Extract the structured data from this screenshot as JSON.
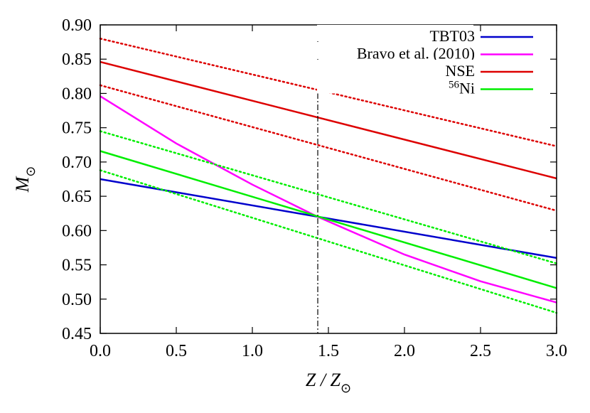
{
  "chart_data": {
    "type": "line",
    "title": "",
    "xlabel": {
      "main": "Z / Z",
      "sub": "⊙"
    },
    "ylabel": {
      "main": "M",
      "sub": "⊙"
    },
    "xlim": [
      0.0,
      3.0
    ],
    "ylim": [
      0.45,
      0.9
    ],
    "xticks": [
      "0.0",
      "0.5",
      "1.0",
      "1.5",
      "2.0",
      "2.5",
      "3.0"
    ],
    "yticks": [
      "0.45",
      "0.50",
      "0.55",
      "0.60",
      "0.65",
      "0.70",
      "0.75",
      "0.80",
      "0.85",
      "0.90"
    ],
    "grid": false,
    "legend_position": "top-right",
    "vline": {
      "x": 1.43,
      "style": "dash-dot",
      "color": "#000000"
    },
    "series": [
      {
        "name": "TBT03",
        "color": "#0000cc",
        "style": "solid",
        "x": [
          0.0,
          3.0
        ],
        "y": [
          0.675,
          0.56
        ]
      },
      {
        "name": "Bravo et al. (2010)",
        "color": "#ff00ff",
        "style": "solid",
        "x": [
          0.0,
          0.5,
          1.0,
          1.43,
          2.0,
          2.5,
          3.0
        ],
        "y": [
          0.796,
          0.727,
          0.667,
          0.62,
          0.565,
          0.526,
          0.495
        ]
      },
      {
        "name": "NSE",
        "color": "#dd0000",
        "style": "solid",
        "x": [
          0.0,
          3.0
        ],
        "y": [
          0.846,
          0.676
        ]
      },
      {
        "name": "",
        "color": "#dd0000",
        "style": "dotted",
        "x": [
          0.0,
          3.0
        ],
        "y": [
          0.88,
          0.723
        ]
      },
      {
        "name": "",
        "color": "#dd0000",
        "style": "dotted",
        "x": [
          0.0,
          3.0
        ],
        "y": [
          0.812,
          0.629
        ]
      },
      {
        "name": "Ni",
        "name_sup": "56",
        "color": "#00ee00",
        "style": "solid",
        "x": [
          0.0,
          3.0
        ],
        "y": [
          0.716,
          0.516
        ]
      },
      {
        "name": "",
        "color": "#00ee00",
        "style": "dotted",
        "x": [
          0.0,
          3.0
        ],
        "y": [
          0.745,
          0.552
        ]
      },
      {
        "name": "",
        "color": "#00ee00",
        "style": "dotted",
        "x": [
          0.0,
          3.0
        ],
        "y": [
          0.688,
          0.48
        ]
      }
    ]
  }
}
